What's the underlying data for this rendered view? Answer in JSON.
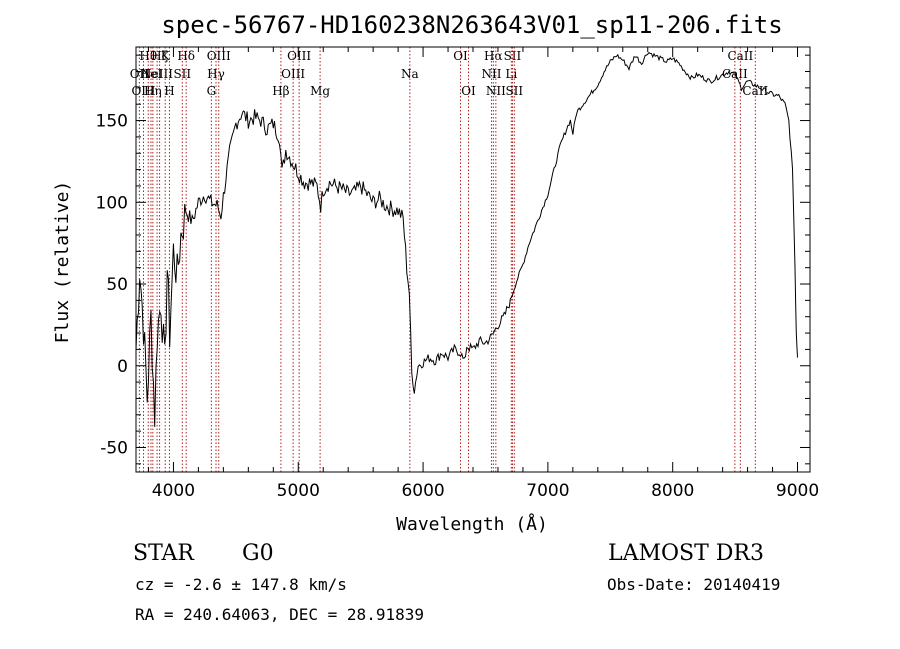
{
  "chart_data": {
    "type": "line",
    "title": "spec-56767-HD160238N263643V01_sp11-206.fits",
    "xlabel": "Wavelength (Å)",
    "ylabel": "Flux (relative)",
    "xlim": [
      3700,
      9100
    ],
    "ylim": [
      -65,
      195
    ],
    "xticks": [
      4000,
      5000,
      6000,
      7000,
      8000,
      9000
    ],
    "yticks": [
      -50,
      0,
      50,
      100,
      150
    ],
    "series": [
      {
        "name": "flux",
        "points": [
          [
            3700,
            10
          ],
          [
            3730,
            60
          ],
          [
            3760,
            25
          ],
          [
            3790,
            -20
          ],
          [
            3820,
            30
          ],
          [
            3850,
            -30
          ],
          [
            3870,
            20
          ],
          [
            3900,
            40
          ],
          [
            3930,
            0
          ],
          [
            3950,
            60
          ],
          [
            3970,
            20
          ],
          [
            4000,
            70
          ],
          [
            4030,
            55
          ],
          [
            4060,
            80
          ],
          [
            4100,
            95
          ],
          [
            4150,
            88
          ],
          [
            4200,
            100
          ],
          [
            4250,
            105
          ],
          [
            4300,
            100
          ],
          [
            4350,
            98
          ],
          [
            4380,
            92
          ],
          [
            4420,
            115
          ],
          [
            4450,
            130
          ],
          [
            4500,
            148
          ],
          [
            4550,
            155
          ],
          [
            4600,
            150
          ],
          [
            4650,
            152
          ],
          [
            4700,
            150
          ],
          [
            4750,
            145
          ],
          [
            4800,
            148
          ],
          [
            4850,
            140
          ],
          [
            4870,
            118
          ],
          [
            4900,
            132
          ],
          [
            4950,
            125
          ],
          [
            5000,
            118
          ],
          [
            5050,
            112
          ],
          [
            5100,
            112
          ],
          [
            5150,
            110
          ],
          [
            5180,
            98
          ],
          [
            5200,
            108
          ],
          [
            5250,
            112
          ],
          [
            5300,
            110
          ],
          [
            5350,
            108
          ],
          [
            5400,
            105
          ],
          [
            5450,
            106
          ],
          [
            5500,
            110
          ],
          [
            5550,
            105
          ],
          [
            5600,
            100
          ],
          [
            5650,
            102
          ],
          [
            5700,
            98
          ],
          [
            5750,
            96
          ],
          [
            5800,
            95
          ],
          [
            5840,
            90
          ],
          [
            5870,
            60
          ],
          [
            5890,
            45
          ],
          [
            5910,
            -5
          ],
          [
            5930,
            -15
          ],
          [
            5960,
            0
          ],
          [
            6000,
            2
          ],
          [
            6050,
            5
          ],
          [
            6100,
            3
          ],
          [
            6150,
            8
          ],
          [
            6200,
            5
          ],
          [
            6250,
            10
          ],
          [
            6300,
            8
          ],
          [
            6330,
            2
          ],
          [
            6350,
            12
          ],
          [
            6400,
            10
          ],
          [
            6450,
            15
          ],
          [
            6500,
            14
          ],
          [
            6550,
            18
          ],
          [
            6600,
            25
          ],
          [
            6650,
            30
          ],
          [
            6700,
            40
          ],
          [
            6750,
            52
          ],
          [
            6800,
            62
          ],
          [
            6850,
            75
          ],
          [
            6900,
            85
          ],
          [
            6950,
            95
          ],
          [
            7000,
            105
          ],
          [
            7050,
            120
          ],
          [
            7100,
            135
          ],
          [
            7150,
            145
          ],
          [
            7180,
            150
          ],
          [
            7200,
            142
          ],
          [
            7230,
            155
          ],
          [
            7300,
            162
          ],
          [
            7400,
            172
          ],
          [
            7450,
            180
          ],
          [
            7500,
            186
          ],
          [
            7550,
            190
          ],
          [
            7600,
            187
          ],
          [
            7650,
            182
          ],
          [
            7700,
            190
          ],
          [
            7750,
            185
          ],
          [
            7800,
            192
          ],
          [
            7850,
            190
          ],
          [
            7900,
            188
          ],
          [
            7950,
            186
          ],
          [
            8000,
            188
          ],
          [
            8050,
            185
          ],
          [
            8100,
            180
          ],
          [
            8150,
            176
          ],
          [
            8200,
            178
          ],
          [
            8250,
            176
          ],
          [
            8300,
            174
          ],
          [
            8350,
            176
          ],
          [
            8400,
            178
          ],
          [
            8450,
            180
          ],
          [
            8500,
            178
          ],
          [
            8550,
            170
          ],
          [
            8600,
            174
          ],
          [
            8650,
            172
          ],
          [
            8700,
            170
          ],
          [
            8750,
            168
          ],
          [
            8800,
            166
          ],
          [
            8850,
            165
          ],
          [
            8900,
            160
          ],
          [
            8930,
            150
          ],
          [
            8960,
            120
          ],
          [
            8980,
            60
          ],
          [
            8990,
            20
          ],
          [
            9000,
            5
          ]
        ]
      }
    ],
    "lines": [
      {
        "x": 3727,
        "label": "OII",
        "row": 1
      },
      {
        "x": 3760,
        "label": "OIII",
        "row": 2
      },
      {
        "x": 3798,
        "label": "Hθ",
        "row": 0
      },
      {
        "x": 3820,
        "label": "HeI",
        "row": 1
      },
      {
        "x": 3835,
        "label": "Hη",
        "row": 2
      },
      {
        "x": 3869,
        "label": "NeIII",
        "row": 1
      },
      {
        "x": 3889,
        "label": "Hζ",
        "row": 0
      },
      {
        "x": 3934,
        "label": "K",
        "row": 0
      },
      {
        "x": 3968,
        "label": "H",
        "row": 2
      },
      {
        "x": 4071,
        "label": "SII",
        "row": 1
      },
      {
        "x": 4102,
        "label": "Hδ",
        "row": 0
      },
      {
        "x": 4304,
        "label": "G",
        "row": 2
      },
      {
        "x": 4341,
        "label": "Hγ",
        "row": 1
      },
      {
        "x": 4363,
        "label": "OIII",
        "row": 0
      },
      {
        "x": 4861,
        "label": "Hβ",
        "row": 2
      },
      {
        "x": 4959,
        "label": "OIII",
        "row": 1
      },
      {
        "x": 5007,
        "label": "OIII",
        "row": 0
      },
      {
        "x": 5175,
        "label": "Mg",
        "row": 2
      },
      {
        "x": 5894,
        "label": "Na",
        "row": 1
      },
      {
        "x": 6300,
        "label": "OI",
        "row": 0
      },
      {
        "x": 6364,
        "label": "OI",
        "row": 2
      },
      {
        "x": 6548,
        "label": "NII",
        "row": 1
      },
      {
        "x": 6563,
        "label": "Hα",
        "row": 0
      },
      {
        "x": 6583,
        "label": "NII",
        "row": 2
      },
      {
        "x": 6707,
        "label": "Li",
        "row": 1
      },
      {
        "x": 6716,
        "label": "SII",
        "row": 0
      },
      {
        "x": 6731,
        "label": "SII",
        "row": 2
      },
      {
        "x": 8498,
        "label": "CaII",
        "row": 1
      },
      {
        "x": 8542,
        "label": "CaII",
        "row": 0
      },
      {
        "x": 8662,
        "label": "CaII",
        "row": 2
      }
    ]
  },
  "info": {
    "object_class": "STAR",
    "subclass": "G0",
    "survey": "LAMOST DR3",
    "cz": "cz = -2.6 ± 147.8 km/s",
    "obs_date": "Obs-Date: 20140419",
    "coords": "RA = 240.64063, DEC =  28.91839"
  },
  "colors": {
    "line_marker": "#b22222",
    "spectrum": "#000000"
  }
}
